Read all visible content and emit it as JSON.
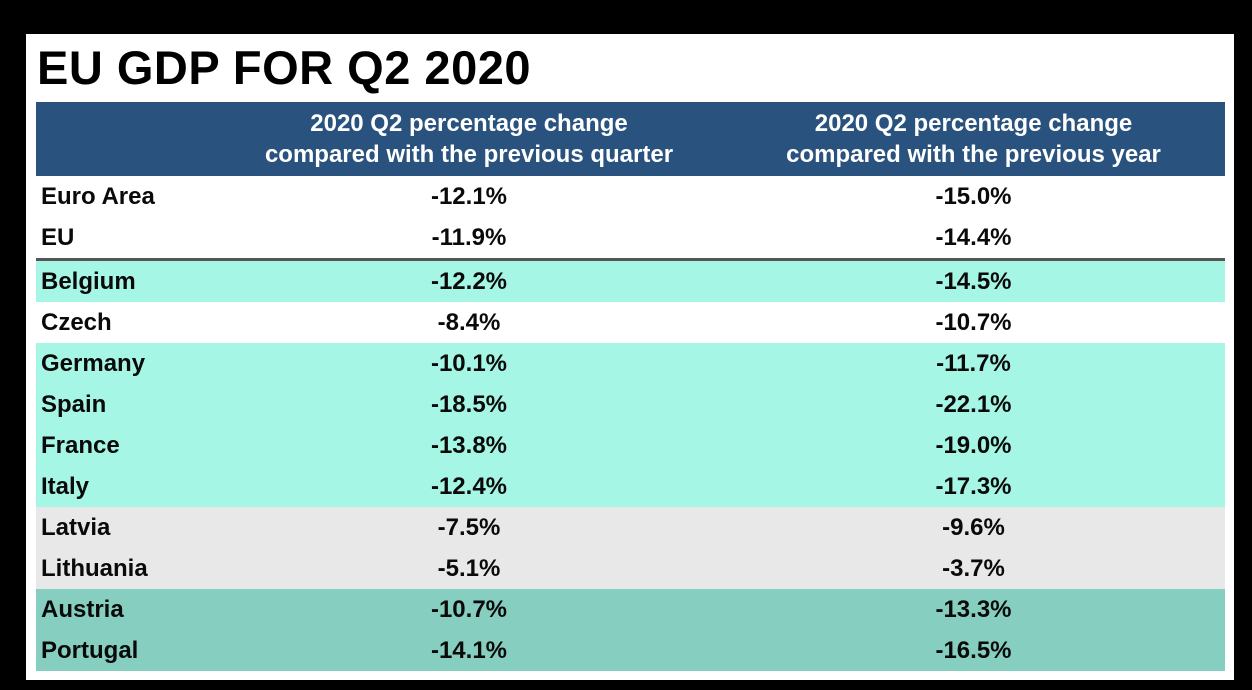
{
  "title": "EU GDP FOR Q2 2020",
  "chart_data": {
    "type": "table",
    "title": "EU GDP FOR Q2 2020",
    "columns": [
      "",
      "2020 Q2 percentage change compared with the previous quarter",
      "2020 Q2 percentage change compared with the previous year"
    ],
    "header": {
      "country": "",
      "quarter": "2020 Q2 percentage change compared with the previous quarter",
      "year": "2020 Q2 percentage change compared with the previous year"
    },
    "rows": [
      {
        "country": "Euro Area",
        "quarter": "-12.1%",
        "year": "-15.0%"
      },
      {
        "country": "EU",
        "quarter": "-11.9%",
        "year": "-14.4%"
      },
      {
        "country": "Belgium",
        "quarter": "-12.2%",
        "year": "-14.5%"
      },
      {
        "country": "Czech",
        "quarter": "-8.4%",
        "year": "-10.7%"
      },
      {
        "country": "Germany",
        "quarter": "-10.1%",
        "year": "-11.7%"
      },
      {
        "country": "Spain",
        "quarter": "-18.5%",
        "year": "-22.1%"
      },
      {
        "country": "France",
        "quarter": "-13.8%",
        "year": "-19.0%"
      },
      {
        "country": "Italy",
        "quarter": "-12.4%",
        "year": "-17.3%"
      },
      {
        "country": "Latvia",
        "quarter": "-7.5%",
        "year": "-9.6%"
      },
      {
        "country": "Lithuania",
        "quarter": "-5.1%",
        "year": "-3.7%"
      },
      {
        "country": "Austria",
        "quarter": "-10.7%",
        "year": "-13.3%"
      },
      {
        "country": "Portugal",
        "quarter": "-14.1%",
        "year": "-16.5%"
      }
    ]
  },
  "colors": {
    "header_background": "#29527e",
    "header_text": "#ffffff",
    "aggregate_rows": "#ffffff",
    "cyan_rows": "#a6f6e6",
    "gray_rows": "#e8e8e8",
    "teal_rows": "#86cfc0",
    "frame": "#000000"
  }
}
